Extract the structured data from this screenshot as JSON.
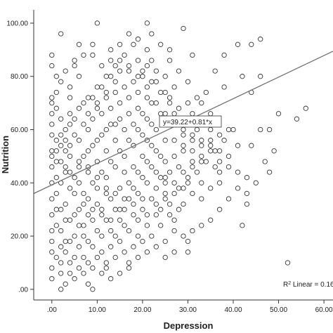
{
  "chart_data": {
    "type": "scatter",
    "title": "",
    "xlabel": "Depression",
    "ylabel": "Nutrition",
    "xlim": [
      -4,
      62
    ],
    "ylim": [
      -4,
      105
    ],
    "x_ticks": [
      ".00",
      "10.00",
      "20.00",
      "30.00",
      "40.00",
      "50.00",
      "60.00"
    ],
    "y_ticks": [
      ".00",
      "20.00",
      "40.00",
      "60.00",
      "80.00",
      "100.00"
    ],
    "grid": false,
    "marker": "open-circle",
    "marker_color": "#333333",
    "fit_line": {
      "intercept": 39.22,
      "slope": 0.81,
      "color": "#707070",
      "equation_label": "y=39.22+0.81*x"
    },
    "r_squared_label": {
      "prefix": "R",
      "sup": "2",
      "suffix": " Linear = 0.16"
    },
    "points": [
      [
        2,
        96
      ],
      [
        10,
        100
      ],
      [
        17,
        96
      ],
      [
        21,
        100
      ],
      [
        29,
        98
      ],
      [
        46,
        94
      ],
      [
        44,
        92
      ],
      [
        41,
        92
      ],
      [
        38,
        88
      ],
      [
        42,
        80
      ],
      [
        46,
        80
      ],
      [
        44,
        74
      ],
      [
        56,
        68
      ],
      [
        54,
        64
      ],
      [
        46,
        60
      ],
      [
        40,
        60
      ],
      [
        36,
        52
      ],
      [
        33,
        48
      ],
      [
        48,
        44
      ],
      [
        43,
        36
      ],
      [
        42,
        24
      ],
      [
        43,
        32
      ],
      [
        30,
        18
      ],
      [
        30,
        14
      ],
      [
        52,
        10
      ],
      [
        2,
        0
      ],
      [
        8,
        2
      ],
      [
        9,
        0
      ],
      [
        4,
        6
      ],
      [
        12,
        8
      ],
      [
        17,
        10
      ],
      [
        25,
        18
      ],
      [
        27,
        26
      ],
      [
        36,
        46
      ],
      [
        35,
        52
      ],
      [
        34,
        48
      ],
      [
        30,
        70
      ],
      [
        32,
        72
      ],
      [
        36,
        82
      ],
      [
        31,
        88
      ],
      [
        26,
        86
      ],
      [
        24,
        92
      ],
      [
        21,
        90
      ],
      [
        19,
        94
      ],
      [
        15,
        86
      ],
      [
        13,
        90
      ],
      [
        9,
        88
      ],
      [
        5,
        84
      ],
      [
        0,
        84
      ],
      [
        0,
        88
      ],
      [
        1,
        80
      ],
      [
        4,
        76
      ],
      [
        0,
        72
      ],
      [
        1,
        68
      ],
      [
        4,
        66
      ],
      [
        0,
        62
      ],
      [
        6,
        92
      ],
      [
        20,
        82
      ],
      [
        38,
        76
      ],
      [
        33,
        56
      ],
      [
        31,
        58
      ],
      [
        29,
        60
      ],
      [
        27,
        56
      ],
      [
        29,
        52
      ],
      [
        31,
        48
      ],
      [
        25,
        36
      ],
      [
        29,
        32
      ],
      [
        33,
        40
      ],
      [
        37,
        40
      ],
      [
        23,
        28
      ],
      [
        27,
        22
      ],
      [
        21,
        24
      ],
      [
        19,
        20
      ],
      [
        15,
        26
      ],
      [
        13,
        16
      ],
      [
        11,
        14
      ],
      [
        7,
        12
      ],
      [
        3,
        14
      ],
      [
        5,
        20
      ],
      [
        1,
        24
      ],
      [
        0,
        28
      ],
      [
        3,
        32
      ],
      [
        1,
        36
      ],
      [
        0,
        40
      ],
      [
        3,
        44
      ],
      [
        1,
        48
      ],
      [
        0,
        52
      ],
      [
        3,
        56
      ],
      [
        5,
        58
      ],
      [
        7,
        62
      ],
      [
        9,
        64
      ],
      [
        11,
        66
      ],
      [
        13,
        68
      ],
      [
        15,
        70
      ],
      [
        17,
        72
      ],
      [
        19,
        74
      ],
      [
        21,
        76
      ],
      [
        23,
        78
      ],
      [
        25,
        80
      ],
      [
        27,
        76
      ],
      [
        26,
        70
      ],
      [
        24,
        66
      ],
      [
        22,
        62
      ],
      [
        20,
        58
      ],
      [
        18,
        54
      ],
      [
        16,
        50
      ],
      [
        14,
        46
      ],
      [
        12,
        42
      ],
      [
        10,
        38
      ],
      [
        8,
        34
      ],
      [
        6,
        30
      ],
      [
        4,
        26
      ],
      [
        2,
        22
      ],
      [
        0,
        18
      ],
      [
        0,
        14
      ],
      [
        2,
        10
      ],
      [
        0,
        4
      ],
      [
        6,
        40
      ],
      [
        8,
        44
      ],
      [
        10,
        48
      ],
      [
        12,
        52
      ],
      [
        14,
        56
      ],
      [
        16,
        60
      ],
      [
        18,
        62
      ],
      [
        20,
        66
      ],
      [
        22,
        70
      ],
      [
        8,
        72
      ],
      [
        10,
        76
      ],
      [
        12,
        80
      ],
      [
        14,
        84
      ],
      [
        16,
        88
      ],
      [
        18,
        92
      ],
      [
        22,
        86
      ],
      [
        6,
        80
      ],
      [
        4,
        72
      ],
      [
        2,
        64
      ],
      [
        7,
        50
      ],
      [
        9,
        54
      ],
      [
        11,
        58
      ],
      [
        13,
        62
      ],
      [
        15,
        64
      ],
      [
        17,
        66
      ],
      [
        19,
        68
      ],
      [
        21,
        64
      ],
      [
        23,
        60
      ],
      [
        25,
        56
      ],
      [
        24,
        50
      ],
      [
        22,
        46
      ],
      [
        20,
        42
      ],
      [
        18,
        38
      ],
      [
        16,
        34
      ],
      [
        14,
        30
      ],
      [
        12,
        26
      ],
      [
        10,
        22
      ],
      [
        8,
        18
      ],
      [
        6,
        16
      ],
      [
        4,
        18
      ],
      [
        2,
        30
      ],
      [
        4,
        38
      ],
      [
        6,
        46
      ],
      [
        8,
        52
      ],
      [
        10,
        56
      ],
      [
        12,
        60
      ],
      [
        14,
        62
      ],
      [
        16,
        44
      ],
      [
        18,
        46
      ],
      [
        20,
        50
      ],
      [
        22,
        54
      ],
      [
        24,
        42
      ],
      [
        26,
        44
      ],
      [
        28,
        46
      ],
      [
        30,
        40
      ],
      [
        28,
        38
      ],
      [
        26,
        32
      ],
      [
        24,
        30
      ],
      [
        22,
        34
      ],
      [
        20,
        30
      ],
      [
        18,
        28
      ],
      [
        16,
        24
      ],
      [
        14,
        20
      ],
      [
        12,
        36
      ],
      [
        10,
        32
      ],
      [
        8,
        28
      ],
      [
        6,
        24
      ],
      [
        4,
        50
      ],
      [
        2,
        54
      ],
      [
        0,
        58
      ],
      [
        3,
        46
      ],
      [
        5,
        42
      ],
      [
        7,
        36
      ],
      [
        9,
        40
      ],
      [
        11,
        44
      ],
      [
        13,
        48
      ],
      [
        15,
        52
      ],
      [
        17,
        56
      ],
      [
        19,
        60
      ],
      [
        21,
        56
      ],
      [
        23,
        52
      ],
      [
        25,
        48
      ],
      [
        27,
        50
      ],
      [
        29,
        54
      ],
      [
        31,
        56
      ],
      [
        33,
        62
      ],
      [
        35,
        66
      ],
      [
        34,
        74
      ],
      [
        30,
        78
      ],
      [
        28,
        82
      ],
      [
        26,
        90
      ],
      [
        22,
        96
      ],
      [
        14,
        78
      ],
      [
        12,
        74
      ],
      [
        10,
        70
      ],
      [
        8,
        66
      ],
      [
        6,
        68
      ],
      [
        4,
        62
      ],
      [
        2,
        58
      ],
      [
        1,
        42
      ],
      [
        0,
        34
      ],
      [
        1,
        30
      ],
      [
        3,
        26
      ],
      [
        5,
        28
      ],
      [
        7,
        24
      ],
      [
        9,
        26
      ],
      [
        11,
        30
      ],
      [
        13,
        34
      ],
      [
        15,
        38
      ],
      [
        17,
        40
      ],
      [
        19,
        44
      ],
      [
        21,
        48
      ],
      [
        23,
        44
      ],
      [
        25,
        40
      ],
      [
        20,
        34
      ],
      [
        18,
        32
      ],
      [
        16,
        30
      ],
      [
        14,
        36
      ],
      [
        12,
        38
      ],
      [
        10,
        42
      ],
      [
        8,
        46
      ],
      [
        6,
        48
      ],
      [
        4,
        44
      ],
      [
        2,
        40
      ],
      [
        0,
        46
      ],
      [
        1,
        52
      ],
      [
        3,
        60
      ],
      [
        5,
        64
      ],
      [
        7,
        70
      ],
      [
        9,
        72
      ],
      [
        11,
        76
      ],
      [
        13,
        80
      ],
      [
        15,
        82
      ],
      [
        17,
        84
      ],
      [
        19,
        86
      ],
      [
        21,
        84
      ],
      [
        23,
        82
      ],
      [
        25,
        74
      ],
      [
        27,
        66
      ],
      [
        29,
        64
      ],
      [
        31,
        66
      ],
      [
        33,
        70
      ],
      [
        35,
        60
      ],
      [
        37,
        58
      ],
      [
        32,
        44
      ],
      [
        30,
        42
      ],
      [
        28,
        30
      ],
      [
        26,
        28
      ],
      [
        24,
        24
      ],
      [
        22,
        20
      ],
      [
        20,
        18
      ],
      [
        18,
        16
      ],
      [
        16,
        14
      ],
      [
        14,
        12
      ],
      [
        12,
        10
      ],
      [
        10,
        12
      ],
      [
        8,
        10
      ],
      [
        6,
        8
      ],
      [
        4,
        10
      ],
      [
        2,
        16
      ],
      [
        0,
        22
      ],
      [
        3,
        18
      ],
      [
        5,
        12
      ],
      [
        7,
        20
      ],
      [
        9,
        16
      ],
      [
        11,
        20
      ],
      [
        13,
        22
      ],
      [
        15,
        18
      ],
      [
        17,
        22
      ],
      [
        19,
        26
      ],
      [
        21,
        28
      ],
      [
        23,
        32
      ],
      [
        25,
        34
      ],
      [
        27,
        36
      ],
      [
        29,
        38
      ],
      [
        31,
        36
      ],
      [
        33,
        34
      ],
      [
        35,
        38
      ],
      [
        37,
        44
      ],
      [
        39,
        50
      ],
      [
        41,
        54
      ],
      [
        38,
        56
      ],
      [
        36,
        62
      ],
      [
        34,
        64
      ],
      [
        32,
        60
      ],
      [
        30,
        62
      ],
      [
        28,
        68
      ],
      [
        26,
        72
      ],
      [
        24,
        74
      ],
      [
        22,
        78
      ],
      [
        20,
        80
      ],
      [
        18,
        78
      ],
      [
        16,
        76
      ],
      [
        14,
        74
      ],
      [
        12,
        72
      ],
      [
        10,
        68
      ],
      [
        8,
        60
      ],
      [
        6,
        56
      ],
      [
        4,
        54
      ],
      [
        2,
        48
      ],
      [
        0,
        50
      ],
      [
        1,
        56
      ],
      [
        3,
        52
      ],
      [
        5,
        36
      ],
      [
        7,
        32
      ],
      [
        9,
        30
      ],
      [
        11,
        28
      ],
      [
        13,
        26
      ],
      [
        15,
        30
      ],
      [
        17,
        34
      ],
      [
        19,
        36
      ],
      [
        21,
        40
      ],
      [
        23,
        38
      ],
      [
        25,
        42
      ],
      [
        27,
        40
      ],
      [
        29,
        44
      ],
      [
        31,
        46
      ],
      [
        33,
        50
      ],
      [
        35,
        54
      ],
      [
        37,
        52
      ],
      [
        39,
        60
      ],
      [
        44,
        54
      ],
      [
        48,
        60
      ],
      [
        50,
        66
      ],
      [
        0,
        66
      ],
      [
        0,
        70
      ],
      [
        1,
        74
      ],
      [
        2,
        78
      ],
      [
        3,
        82
      ],
      [
        5,
        86
      ],
      [
        7,
        88
      ],
      [
        9,
        92
      ],
      [
        11,
        84
      ],
      [
        13,
        86
      ],
      [
        15,
        92
      ],
      [
        17,
        82
      ],
      [
        19,
        80
      ],
      [
        21,
        72
      ],
      [
        23,
        70
      ],
      [
        25,
        66
      ],
      [
        27,
        62
      ],
      [
        29,
        58
      ],
      [
        31,
        52
      ],
      [
        33,
        54
      ],
      [
        35,
        56
      ],
      [
        37,
        48
      ],
      [
        39,
        46
      ],
      [
        41,
        44
      ],
      [
        43,
        42
      ],
      [
        0,
        8
      ],
      [
        1,
        12
      ],
      [
        2,
        6
      ],
      [
        3,
        2
      ],
      [
        5,
        4
      ],
      [
        7,
        6
      ],
      [
        9,
        8
      ],
      [
        11,
        6
      ],
      [
        13,
        4
      ],
      [
        15,
        6
      ],
      [
        17,
        8
      ],
      [
        19,
        12
      ],
      [
        21,
        14
      ],
      [
        23,
        16
      ],
      [
        25,
        12
      ],
      [
        27,
        14
      ],
      [
        29,
        20
      ],
      [
        31,
        22
      ],
      [
        33,
        24
      ],
      [
        35,
        26
      ],
      [
        37,
        30
      ],
      [
        39,
        34
      ],
      [
        41,
        38
      ],
      [
        45,
        40
      ],
      [
        47,
        48
      ],
      [
        49,
        52
      ]
    ]
  }
}
